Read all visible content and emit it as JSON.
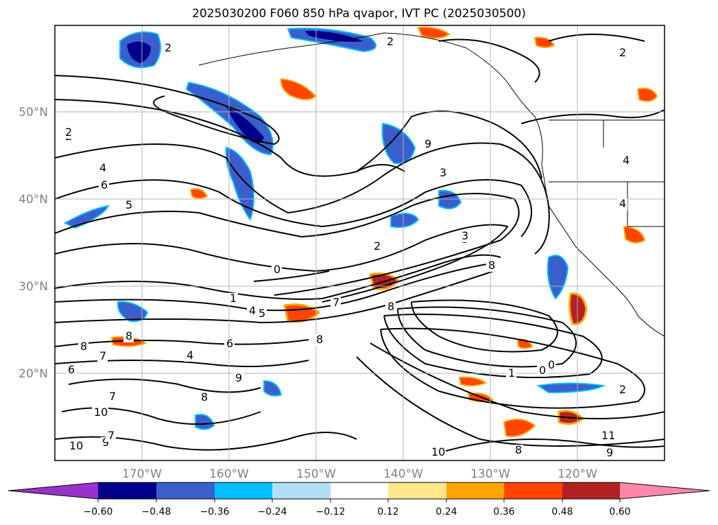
{
  "title": "2025030200 F060 850 hPa qvapor, IVT PC (2025030500)",
  "map": {
    "lat_labels": [
      "50°N",
      "40°N",
      "30°N",
      "20°N"
    ],
    "lon_labels": [
      "170°W",
      "160°W",
      "150°W",
      "140°W",
      "130°W",
      "120°W"
    ]
  },
  "colorbar": {
    "tick_labels": [
      "−0.60",
      "−0.48",
      "−0.36",
      "−0.24",
      "−0.12",
      "0.12",
      "0.24",
      "0.36",
      "0.48",
      "0.60"
    ],
    "colors": [
      "#9932cc",
      "#00008b",
      "#3a5fcd",
      "#00bfff",
      "#b0e0f6",
      "#ffffff",
      "#ffe88a",
      "#ffa500",
      "#ff4500",
      "#b22222",
      "#ff88aa"
    ]
  },
  "contour_labels": [
    "2",
    "2",
    "2",
    "2",
    "4",
    "6",
    "5",
    "2",
    "3",
    "0",
    "1",
    "4",
    "5",
    "7",
    "8",
    "8",
    "6",
    "4",
    "7",
    "6",
    "8",
    "9",
    "8",
    "7",
    "10",
    "10",
    "9",
    "10",
    "8",
    "11",
    "9",
    "1",
    "0",
    "0",
    "2",
    "8",
    "3",
    "4",
    "4",
    "8",
    "2",
    "7",
    "9",
    "3"
  ],
  "colors": {
    "contour": "#000000",
    "coast": "#000000",
    "grid": "#b0b0b0",
    "tick_text": "#808080"
  }
}
